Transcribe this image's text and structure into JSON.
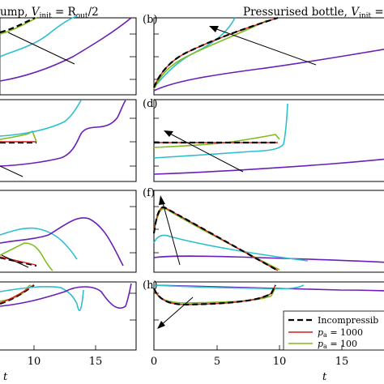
{
  "chart_data": {
    "type": "line",
    "titles": {
      "left": "ump, ",
      "left_math": "V",
      "left_sub": "init",
      "left_eq": " = R",
      "left_sub2": "out",
      "left_tail": "/2",
      "right": "Pressurised bottle, ",
      "right_math": "V",
      "right_sub": "init",
      "right_eq": " = R"
    },
    "xlabel": "t",
    "xlim_left": [
      5,
      19
    ],
    "xlim_right": [
      -1,
      19
    ],
    "xticks_left": [
      "10",
      "15"
    ],
    "xticks_right": [
      "0",
      "5",
      "10",
      "15"
    ],
    "panel_letters": [
      "(b)",
      "(d)",
      "(f)",
      "(h)"
    ],
    "colors": {
      "incompressible": "#000000",
      "pa1000": "#d7191c",
      "pa100": "#7fbc1e",
      "cyan": "#2ebfcf",
      "purple": "#6a1fb8"
    },
    "legend": {
      "placement": "bottom-right",
      "entries": [
        "Incompressib",
        "p",
        "p"
      ],
      "entry_math": [
        "",
        "a",
        "a"
      ],
      "entry_vals": [
        "",
        " = 1000",
        " = 100"
      ]
    },
    "panels": {
      "a": [
        {
          "color": "cyan",
          "points": [
            [
              5,
              0.15
            ],
            [
              6,
              0.3
            ],
            [
              7.5,
              0.5
            ],
            [
              8.5,
              0.7
            ],
            [
              9.5,
              0.9
            ],
            [
              10,
              1.0
            ]
          ]
        },
        {
          "color": "green",
          "points": [
            [
              5,
              0.8
            ],
            [
              6,
              0.88
            ],
            [
              7,
              0.95
            ],
            [
              7.5,
              1.0
            ]
          ]
        },
        {
          "color": "black",
          "points": [
            [
              5,
              0.82
            ],
            [
              6,
              0.9
            ],
            [
              7,
              0.97
            ],
            [
              7.3,
              1.0
            ]
          ]
        },
        {
          "color": "purple",
          "points": [
            [
              5,
              0.05
            ],
            [
              8,
              0.2
            ],
            [
              10,
              0.42
            ],
            [
              11,
              0.55
            ],
            [
              12,
              0.7
            ],
            [
              13,
              0.85
            ],
            [
              14,
              0.95
            ],
            [
              14.5,
              1.0
            ]
          ]
        },
        {
          "color": "arrow",
          "points": [
            [
              5.5,
              0.9
            ],
            [
              9.3,
              0.45
            ]
          ]
        }
      ]
    }
  }
}
